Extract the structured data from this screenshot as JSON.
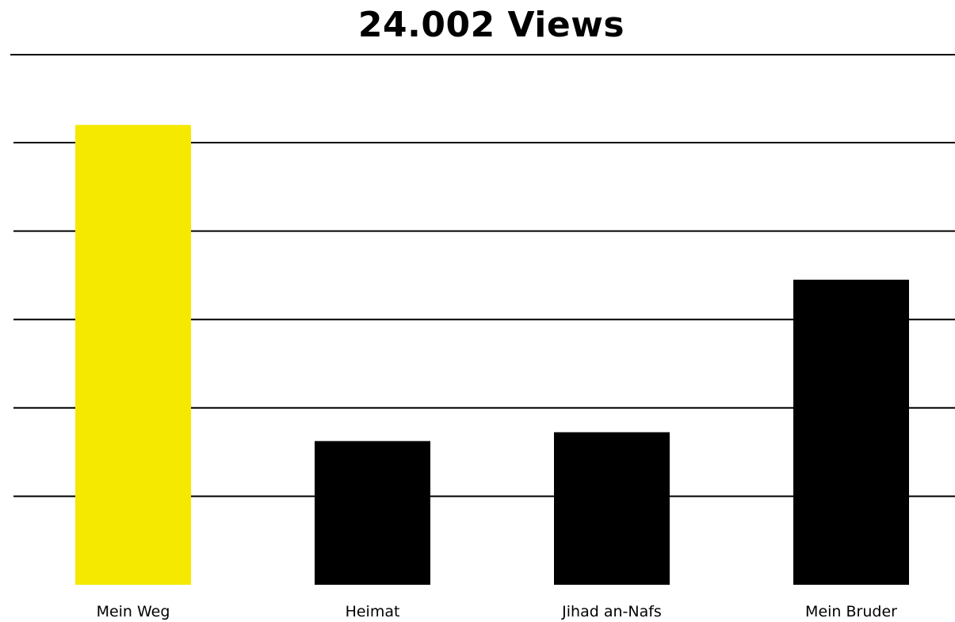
{
  "chart_data": {
    "type": "bar",
    "title": "24.002 Views",
    "xlabel": "",
    "ylabel": "",
    "categories": [
      "Mein Weg",
      "Heimat",
      "Jihad an-Nafs",
      "Mein Bruder"
    ],
    "values": [
      10.4,
      3.25,
      3.45,
      6.9
    ],
    "ylim": [
      0,
      11
    ],
    "grid": true,
    "legend": "none",
    "colors": {
      "highlight": "#f5e900",
      "bars": "#000000",
      "grid": "#000000"
    },
    "highlight_index": 0
  }
}
